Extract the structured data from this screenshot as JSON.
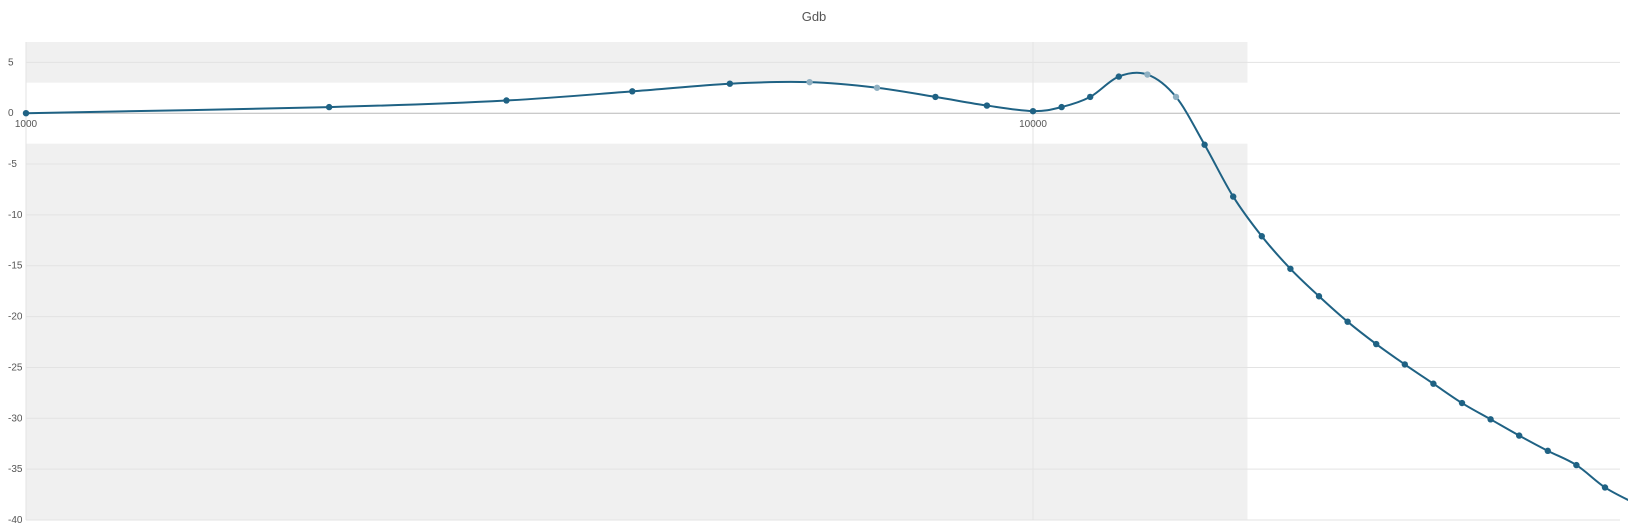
{
  "chart_data": {
    "type": "line",
    "title": "Gdb",
    "xlabel": "",
    "ylabel": "",
    "xscale": "log",
    "xlim": [
      1000,
      50000
    ],
    "ylim": [
      -40,
      7
    ],
    "grid": true,
    "x_ticks": [
      "1000",
      "10000"
    ],
    "y_ticks": [
      "5",
      "0",
      "-5",
      "-10",
      "-15",
      "-20",
      "-25",
      "-30",
      "-35",
      "-40"
    ],
    "bands": [
      {
        "x_from": 1000,
        "x_to": 17500,
        "y_from": 3,
        "y_to": 7
      },
      {
        "x_from": 1000,
        "x_to": 17500,
        "y_from": -40,
        "y_to": -3
      },
      {
        "x_from": 47000,
        "x_to": 50000,
        "y_from": -40,
        "y_to": 7
      }
    ],
    "series": [
      {
        "name": "",
        "color": "#1f6284",
        "points": [
          [
            1000,
            0.0
          ],
          [
            2000,
            0.6
          ],
          [
            3000,
            1.25
          ],
          [
            4000,
            2.15
          ],
          [
            5000,
            2.9
          ],
          [
            6000,
            3.05
          ],
          [
            7000,
            2.5
          ],
          [
            8000,
            1.6
          ],
          [
            9000,
            0.75
          ],
          [
            10000,
            0.2
          ],
          [
            11000,
            0.6
          ],
          [
            12000,
            1.6
          ],
          [
            13000,
            3.6
          ],
          [
            14000,
            3.8
          ],
          [
            15000,
            1.6
          ],
          [
            16000,
            -3.1
          ],
          [
            17000,
            -8.2
          ],
          [
            18000,
            -12.1
          ],
          [
            19000,
            -15.3
          ],
          [
            20000,
            -18.0
          ],
          [
            21000,
            -20.5
          ],
          [
            22000,
            -22.7
          ],
          [
            23000,
            -24.7
          ],
          [
            24000,
            -26.6
          ],
          [
            25000,
            -28.5
          ],
          [
            26000,
            -30.1
          ],
          [
            27000,
            -31.7
          ],
          [
            28000,
            -33.2
          ],
          [
            29000,
            -34.6
          ],
          [
            30000,
            -36.8
          ],
          [
            31000,
            -38.3
          ]
        ],
        "highlighted": [
          5,
          6,
          13,
          14,
          31
        ]
      }
    ]
  }
}
